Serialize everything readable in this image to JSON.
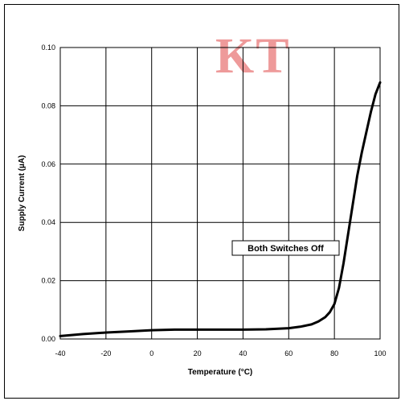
{
  "watermark": "KT",
  "chart_data": {
    "type": "line",
    "xlabel": "Temperature (°C)",
    "ylabel": "Supply Current (µA)",
    "xlim": [
      -40,
      100
    ],
    "ylim": [
      0.0,
      0.1
    ],
    "xticks": [
      "-40",
      "-20",
      "0",
      "20",
      "40",
      "60",
      "80",
      "100"
    ],
    "yticks": [
      "0.00",
      "0.02",
      "0.04",
      "0.06",
      "0.08",
      "0.10"
    ],
    "grid": true,
    "annotation": "Both Switches Off",
    "series": [
      {
        "x": [
          -40,
          -30,
          -20,
          -10,
          0,
          10,
          20,
          30,
          40,
          50,
          60,
          65,
          70,
          73,
          76,
          78,
          80,
          82,
          84,
          86,
          88,
          90,
          92,
          94,
          96,
          98,
          100
        ],
        "y": [
          0.001,
          0.0017,
          0.0022,
          0.0026,
          0.003,
          0.0032,
          0.0032,
          0.0032,
          0.0032,
          0.0033,
          0.0037,
          0.0042,
          0.005,
          0.006,
          0.0075,
          0.0092,
          0.012,
          0.0175,
          0.026,
          0.036,
          0.046,
          0.056,
          0.064,
          0.071,
          0.078,
          0.084,
          0.088
        ]
      }
    ],
    "line_color": "#000000"
  }
}
